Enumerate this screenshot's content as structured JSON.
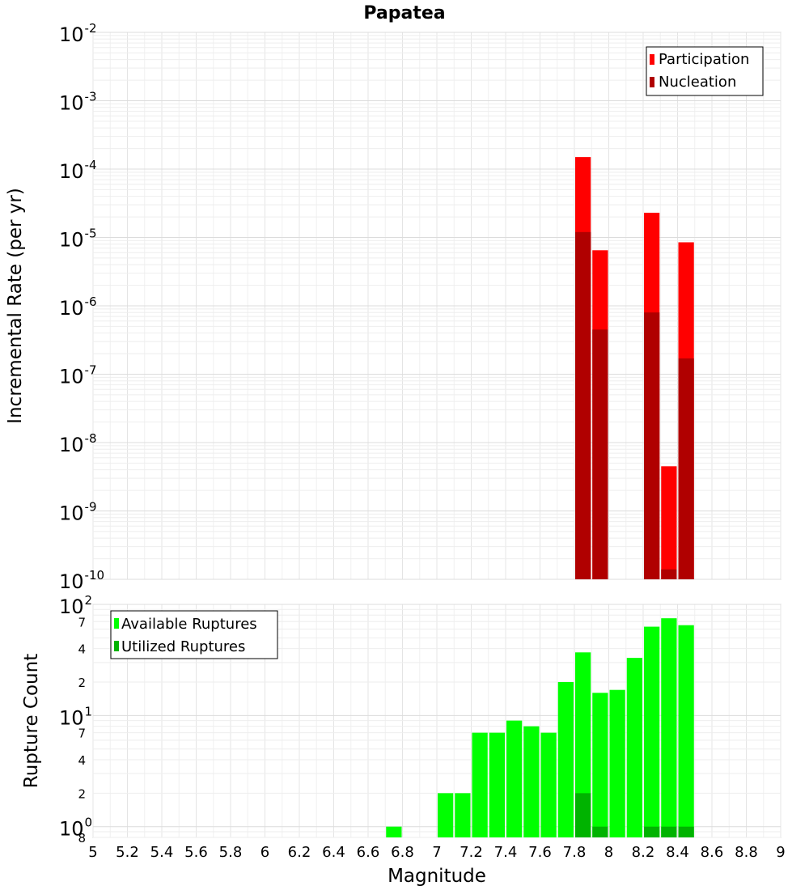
{
  "chart_data": [
    {
      "type": "bar",
      "panel": "top",
      "title": "Papatea",
      "xlabel": "Magnitude",
      "ylabel": "Incremental Rate (per yr)",
      "yscale": "log",
      "xlim": [
        5,
        9
      ],
      "ylim": [
        1e-10,
        0.01
      ],
      "bin_width": 0.1,
      "y_tick_exponents": [
        -2,
        -3,
        -4,
        -5,
        -6,
        -7,
        -8,
        -9,
        -10
      ],
      "legend_position": "top-right",
      "series": [
        {
          "name": "Participation",
          "color": "#ff0000",
          "points": [
            {
              "x": 7.85,
              "y": 0.00015
            },
            {
              "x": 7.95,
              "y": 6.5e-06
            },
            {
              "x": 8.25,
              "y": 2.3e-05
            },
            {
              "x": 8.35,
              "y": 4.5e-09
            },
            {
              "x": 8.45,
              "y": 8.5e-06
            }
          ]
        },
        {
          "name": "Nucleation",
          "color": "#b00000",
          "points": [
            {
              "x": 7.85,
              "y": 1.2e-05
            },
            {
              "x": 7.95,
              "y": 4.5e-07
            },
            {
              "x": 8.25,
              "y": 8e-07
            },
            {
              "x": 8.35,
              "y": 1.4e-10
            },
            {
              "x": 8.45,
              "y": 1.7e-07
            }
          ]
        }
      ]
    },
    {
      "type": "bar",
      "panel": "bottom",
      "xlabel": "Magnitude",
      "ylabel": "Rupture Count",
      "yscale": "log",
      "xlim": [
        5,
        9
      ],
      "ylim": [
        0.8,
        100
      ],
      "bin_width": 0.1,
      "x_ticks": [
        "5",
        "5.2",
        "5.4",
        "5.6",
        "5.8",
        "6",
        "6.2",
        "6.4",
        "6.6",
        "6.8",
        "7",
        "7.2",
        "7.4",
        "7.6",
        "7.8",
        "8",
        "8.2",
        "8.4",
        "8.6",
        "8.8",
        "9"
      ],
      "y_major_ticks": [
        {
          "value": 100,
          "base": "10",
          "exp": "2"
        },
        {
          "value": 10,
          "base": "10",
          "exp": "1"
        },
        {
          "value": 1,
          "base": "10",
          "exp": "0"
        }
      ],
      "y_minor_ticks": [
        {
          "value": 70,
          "label": "7"
        },
        {
          "value": 40,
          "label": "4"
        },
        {
          "value": 20,
          "label": "2"
        },
        {
          "value": 7,
          "label": "7"
        },
        {
          "value": 4,
          "label": "4"
        },
        {
          "value": 2,
          "label": "2"
        },
        {
          "value": 0.8,
          "label": "8"
        }
      ],
      "legend_position": "top-left",
      "series": [
        {
          "name": "Available Ruptures",
          "color": "#00ff00",
          "points": [
            {
              "x": 6.75,
              "y": 1
            },
            {
              "x": 7.05,
              "y": 2
            },
            {
              "x": 7.15,
              "y": 2
            },
            {
              "x": 7.25,
              "y": 7
            },
            {
              "x": 7.35,
              "y": 7
            },
            {
              "x": 7.45,
              "y": 9
            },
            {
              "x": 7.55,
              "y": 8
            },
            {
              "x": 7.65,
              "y": 7
            },
            {
              "x": 7.75,
              "y": 20
            },
            {
              "x": 7.85,
              "y": 37
            },
            {
              "x": 7.95,
              "y": 16
            },
            {
              "x": 8.05,
              "y": 17
            },
            {
              "x": 8.15,
              "y": 33
            },
            {
              "x": 8.25,
              "y": 63
            },
            {
              "x": 8.35,
              "y": 75
            },
            {
              "x": 8.45,
              "y": 65
            }
          ]
        },
        {
          "name": "Utilized Ruptures",
          "color": "#00b300",
          "points": [
            {
              "x": 7.85,
              "y": 2
            },
            {
              "x": 7.95,
              "y": 1
            },
            {
              "x": 8.25,
              "y": 1
            },
            {
              "x": 8.35,
              "y": 1
            },
            {
              "x": 8.45,
              "y": 1
            }
          ]
        }
      ]
    }
  ]
}
